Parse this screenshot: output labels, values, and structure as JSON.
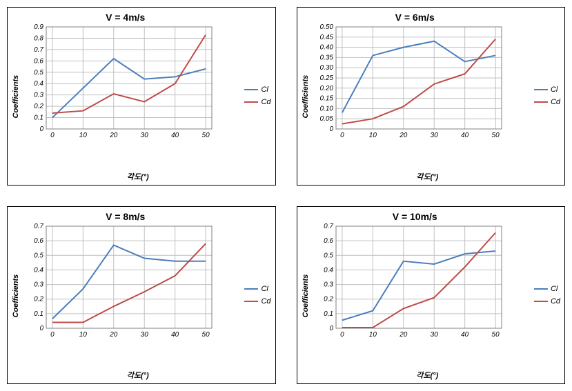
{
  "layout": {
    "rows": 2,
    "cols": 2,
    "panel_border_color": "#000000",
    "background_color": "#ffffff",
    "grid_color": "#c0c0c0"
  },
  "common": {
    "ylabel": "Coefficients",
    "xlabel": "각도(°)",
    "ylabel_fontsize": 11,
    "xlabel_fontsize": 11,
    "title_fontsize": 14,
    "tick_fontsize": 10,
    "x_values": [
      0,
      10,
      20,
      30,
      40,
      50
    ],
    "xlim": [
      -2,
      52
    ],
    "xtick_step": 10,
    "series_names": [
      "Cl",
      "Cd"
    ],
    "series_colors": {
      "Cl": "#4a7ebb",
      "Cd": "#be4b48"
    },
    "line_width": 2,
    "axis_font_style": "italic"
  },
  "charts": [
    {
      "id": "v4",
      "title": "V = 4m/s",
      "ylim": [
        0,
        0.9
      ],
      "ytick_step": 0.1,
      "Cl": [
        0.1,
        0.36,
        0.62,
        0.44,
        0.46,
        0.53
      ],
      "Cd": [
        0.14,
        0.16,
        0.31,
        0.24,
        0.4,
        0.83
      ]
    },
    {
      "id": "v6",
      "title": "V = 6m/s",
      "ylim": [
        0,
        0.5
      ],
      "ytick_step": 0.05,
      "Cl": [
        0.08,
        0.36,
        0.4,
        0.43,
        0.33,
        0.36
      ],
      "Cd": [
        0.025,
        0.05,
        0.11,
        0.22,
        0.27,
        0.44
      ]
    },
    {
      "id": "v8",
      "title": "V = 8m/s",
      "ylim": [
        0,
        0.7
      ],
      "ytick_step": 0.1,
      "Cl": [
        0.065,
        0.27,
        0.57,
        0.48,
        0.46,
        0.46
      ],
      "Cd": [
        0.04,
        0.04,
        0.15,
        0.25,
        0.36,
        0.58
      ]
    },
    {
      "id": "v10",
      "title": "V = 10m/s",
      "ylim": [
        0,
        0.7
      ],
      "ytick_step": 0.1,
      "Cl": [
        0.055,
        0.12,
        0.46,
        0.44,
        0.51,
        0.53
      ],
      "Cd": [
        0.005,
        0.005,
        0.135,
        0.21,
        0.42,
        0.655
      ]
    }
  ]
}
